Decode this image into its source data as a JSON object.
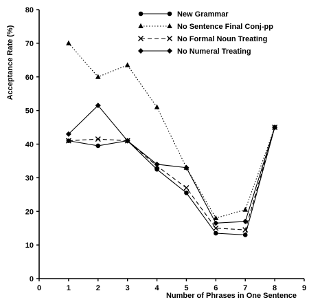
{
  "chart_data": {
    "type": "line",
    "title": "",
    "xlabel": "Number of Phrases in One Sentence",
    "ylabel": "Acceptance Rate (%)",
    "xlim": [
      0,
      9
    ],
    "ylim": [
      0,
      80
    ],
    "xticks": [
      0,
      1,
      2,
      3,
      4,
      5,
      6,
      7,
      8,
      9
    ],
    "yticks": [
      0,
      10,
      20,
      30,
      40,
      50,
      60,
      70,
      80
    ],
    "grid": false,
    "legend_position": "top-right",
    "x": [
      1,
      2,
      3,
      4,
      5,
      6,
      7,
      8
    ],
    "series": [
      {
        "name": "New Grammar",
        "marker": "circle",
        "line": "solid",
        "values": [
          41,
          39.5,
          41,
          32.5,
          25.5,
          13.5,
          13,
          45
        ]
      },
      {
        "name": "No Sentence Final Conj-pp",
        "marker": "triangle",
        "line": "dotted",
        "values": [
          70,
          60,
          63.5,
          51,
          33,
          18,
          20.5,
          45
        ]
      },
      {
        "name": "No Formal Noun Treating",
        "marker": "x",
        "line": "dashed",
        "values": [
          41,
          41.5,
          41,
          33.5,
          27,
          15,
          14.5,
          45
        ]
      },
      {
        "name": "No Numeral Treating",
        "marker": "diamond",
        "line": "solid",
        "values": [
          43,
          51.5,
          41,
          34,
          33,
          16.5,
          17,
          45
        ]
      }
    ]
  }
}
